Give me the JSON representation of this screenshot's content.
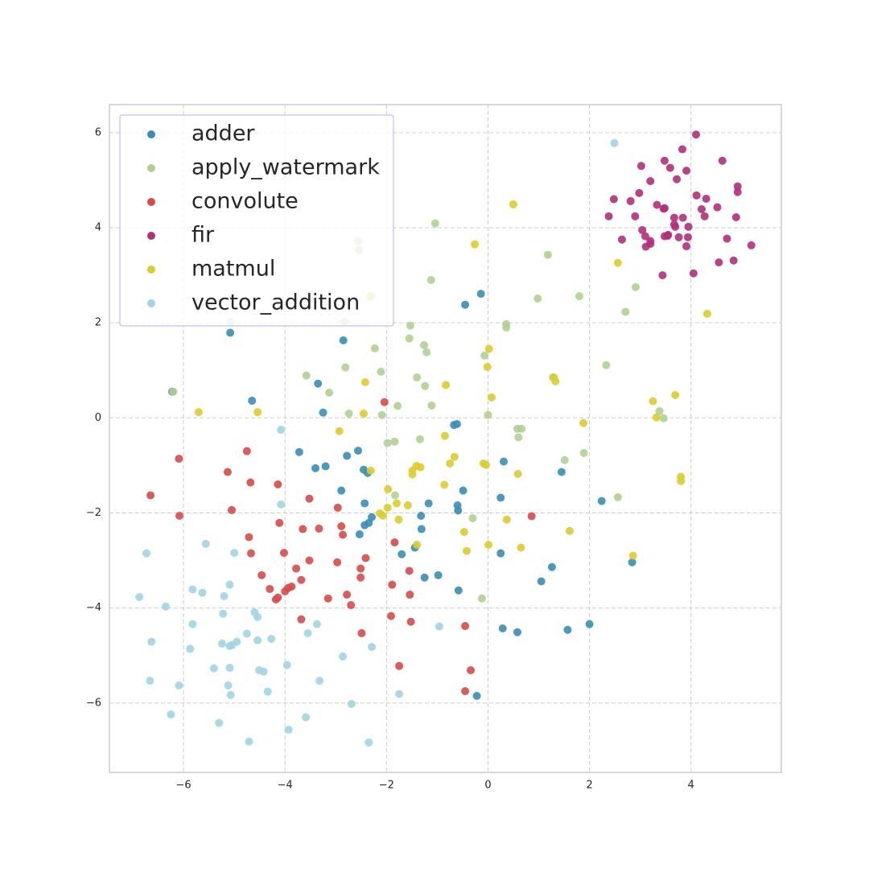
{
  "chart_data": {
    "type": "scatter",
    "xlim": [
      -7.46,
      5.78
    ],
    "ylim": [
      -7.46,
      6.59
    ],
    "xticks": [
      {
        "value": -6,
        "label": "−6"
      },
      {
        "value": -4,
        "label": "−4"
      },
      {
        "value": -2,
        "label": "−2"
      },
      0,
      2,
      4
    ],
    "yticks": [
      {
        "value": -6,
        "label": "−6"
      },
      {
        "value": -4,
        "label": "−4"
      },
      {
        "value": -2,
        "label": "−2"
      },
      0,
      2,
      4,
      6
    ],
    "grid": true,
    "legend": "upper left",
    "series": [
      {
        "name": "adder",
        "color": "#3a8eb5",
        "x": [
          -6.22,
          -5.08,
          -4.65,
          -3.35,
          -3.25,
          -2.85,
          -0.45,
          -0.14,
          -3.72,
          -3.4,
          -3.2,
          -2.78,
          -2.56,
          -2.45,
          -2.37,
          -2.89,
          -2.43,
          -2.29,
          -2.35,
          -2.43,
          -2.53,
          -1.32,
          -1.17,
          -1.31,
          -1.44,
          -1.7,
          -1.25,
          -0.98,
          -0.58,
          -0.67,
          -0.61,
          -0.49,
          -0.6,
          -0.59,
          0.31,
          0.25,
          0.25,
          0.29,
          0.58,
          -0.22,
          1.26,
          1.05,
          1.45,
          1.57,
          2.0,
          2.24,
          2.84
        ],
        "values": [
          0.55,
          1.79,
          0.36,
          0.72,
          0.11,
          1.63,
          2.38,
          2.61,
          -0.72,
          -1.06,
          -1.02,
          -0.8,
          -0.69,
          -1.09,
          -1.16,
          -1.53,
          -1.8,
          -2.09,
          -2.21,
          -2.26,
          -2.45,
          -2.06,
          -1.8,
          -2.34,
          -2.73,
          -2.87,
          -3.36,
          -3.31,
          -3.63,
          -0.15,
          -0.13,
          -1.53,
          -1.84,
          -1.95,
          -0.92,
          -1.68,
          -2.85,
          -4.43,
          -4.51,
          -5.85,
          -3.14,
          -3.44,
          -1.14,
          -4.46,
          -4.34,
          -1.75,
          -3.04
        ]
      },
      {
        "name": "apply_watermark",
        "color": "#b0d092",
        "x": [
          -1.04,
          -1.12,
          1.18,
          0.98,
          1.8,
          2.91,
          2.71,
          0.36,
          0.36,
          -1.53,
          -2.23,
          -1.26,
          -1.21,
          -1.55,
          -3.58,
          -2.81,
          -2.11,
          -3.13,
          -2.74,
          -2.09,
          -1.78,
          -1.4,
          -1.24,
          -1.11,
          -0.07,
          0,
          0.58,
          0.66,
          0.6,
          -1.98,
          -1.84,
          -1.34,
          -1.83,
          -0.3,
          -0.12,
          1.28,
          1.51,
          1.89,
          2.33,
          2.56,
          3.38,
          3.46,
          -2.56,
          -2.54,
          -2.83,
          -6.2
        ],
        "values": [
          4.09,
          2.9,
          3.43,
          2.51,
          2.56,
          2.75,
          2.23,
          1.97,
          1.9,
          1.94,
          1.46,
          1.53,
          1.38,
          1.67,
          0.89,
          1.06,
          0.97,
          0.53,
          0.09,
          0.06,
          0.25,
          0.85,
          0.67,
          0.26,
          1.31,
          0.06,
          -0.23,
          -0.23,
          -0.41,
          -0.53,
          -0.5,
          -0.45,
          -1.63,
          -2.11,
          -3.8,
          0.85,
          -0.89,
          -0.74,
          1.11,
          -1.67,
          0.14,
          -0.01,
          3.72,
          3.53,
          2.02,
          0.55
        ]
      },
      {
        "name": "convolute",
        "color": "#d64a4a",
        "x": [
          -6.65,
          -6.09,
          -6.08,
          -5.13,
          -5.05,
          -4.75,
          -4.68,
          -4.71,
          -4.67,
          -4.14,
          -4.11,
          -4.02,
          -4.46,
          -4.3,
          -4.18,
          -4.14,
          -4.0,
          -3.94,
          -3.87,
          -3.78,
          -3.68,
          -3.65,
          -3.52,
          -3.33,
          -3.52,
          -3.68,
          -3.15,
          -2.97,
          -2.96,
          -2.89,
          -2.86,
          -2.78,
          -2.7,
          -2.51,
          -2.51,
          -2.41,
          -2.49,
          -2.04,
          -1.84,
          -1.89,
          -1.91,
          -1.55,
          -1.54,
          -1.52,
          -1.75,
          -0.45,
          -0.34,
          -0.45,
          0.86
        ],
        "values": [
          -1.63,
          -0.86,
          -2.06,
          -1.14,
          -1.94,
          -0.7,
          -1.36,
          -2.51,
          -2.85,
          -1.4,
          -2.21,
          -2.84,
          -3.31,
          -3.6,
          -3.82,
          -3.78,
          -3.65,
          -3.58,
          -3.55,
          -3.17,
          -3.41,
          -2.34,
          -1.7,
          -2.33,
          -3.0,
          -4.24,
          -3.8,
          -3.04,
          -1.89,
          -2.28,
          -2.46,
          -3.72,
          -3.94,
          -3.17,
          -3.36,
          -2.95,
          -4.53,
          0.33,
          -2.62,
          -3.51,
          -4.17,
          -3.22,
          -3.72,
          -4.29,
          -5.22,
          -4.38,
          -5.31,
          -5.75,
          -2.07
        ]
      },
      {
        "name": "fir",
        "color": "#b0307a",
        "x": [
          2.48,
          2.38,
          3.02,
          3.2,
          2.98,
          2.81,
          2.9,
          2.64,
          3.04,
          3.1,
          3.11,
          3.2,
          3.2,
          3.48,
          3.59,
          3.72,
          3.83,
          3.91,
          4.1,
          4.62,
          3.33,
          3.48,
          3.46,
          3.67,
          3.67,
          3.84,
          3.95,
          3.69,
          3.55,
          3.48,
          3.54,
          3.76,
          3.94,
          3.91,
          3.44,
          4.05,
          4.11,
          4.21,
          4.3,
          4.27,
          4.52,
          4.71,
          4.55,
          4.84,
          4.92,
          4.92,
          4.89,
          5.19
        ],
        "values": [
          4.6,
          4.24,
          5.3,
          4.98,
          4.73,
          4.56,
          4.24,
          3.75,
          3.95,
          3.82,
          3.6,
          3.72,
          3.66,
          5.41,
          5.26,
          5.02,
          5.65,
          5.2,
          5.96,
          5.41,
          4.48,
          4.41,
          4.4,
          4.21,
          4.07,
          4.21,
          4.02,
          4.02,
          3.85,
          3.82,
          3.83,
          3.8,
          3.8,
          3.61,
          3.0,
          3.04,
          4.68,
          4.39,
          4.61,
          4.24,
          4.43,
          3.77,
          3.27,
          3.31,
          4.87,
          4.75,
          4.22,
          3.63
        ]
      },
      {
        "name": "matmul",
        "color": "#dccc30",
        "x": [
          0.5,
          -0.26,
          2.56,
          4.32,
          -2.32,
          -2.42,
          -2.45,
          -4.54,
          -5.7,
          -2.93,
          -2.31,
          -2.13,
          -2.07,
          -1.98,
          -1.97,
          -1.8,
          -1.76,
          -1.58,
          -1.49,
          -1.49,
          -1.41,
          -1.33,
          -1.4,
          -0.83,
          -0.85,
          -0.75,
          -0.66,
          -0.86,
          -0.47,
          -0.42,
          0.02,
          -0.01,
          0.07,
          -0.09,
          -0.04,
          0.37,
          0.01,
          0.59,
          0.65,
          1.3,
          1.33,
          1.88,
          1.61,
          3.25,
          3.32,
          3.69,
          3.8,
          3.8,
          2.86
        ],
        "values": [
          4.49,
          3.65,
          3.26,
          2.19,
          2.55,
          0.75,
          0.09,
          0.12,
          0.12,
          -0.28,
          -1.11,
          -2.01,
          -2.06,
          -1.89,
          -1.5,
          -1.8,
          -2.14,
          -1.84,
          -1.11,
          -1.19,
          -1.01,
          -1.04,
          -2.67,
          0.69,
          -0.38,
          -0.96,
          -0.82,
          -1.41,
          -2.4,
          -2.8,
          1.45,
          1.07,
          0.43,
          -0.96,
          -0.99,
          -2.14,
          -2.67,
          -1.18,
          -2.73,
          0.85,
          0.77,
          -0.11,
          -2.38,
          0.35,
          0.01,
          0.48,
          -1.24,
          -1.33,
          -2.9
        ]
      },
      {
        "name": "vector_addition",
        "color": "#a2d4e2",
        "x": [
          2.49,
          -5.07,
          -4.08,
          -4.08,
          -6.73,
          -5.56,
          -5.0,
          -6.87,
          -6.35,
          -5.82,
          -5.63,
          -5.2,
          -5.09,
          -6.63,
          -5.82,
          -5.22,
          -5.87,
          -5.24,
          -5.09,
          -5.04,
          -4.95,
          -4.75,
          -4.6,
          -4.54,
          -4.54,
          -4.27,
          -5.4,
          -5.09,
          -4.51,
          -4.42,
          -3.96,
          -3.55,
          -3.37,
          -3.32,
          -6.09,
          -6.66,
          -5.12,
          -5.07,
          -4.34,
          -6.25,
          -5.3,
          -3.59,
          -4.71,
          -3.93,
          -2.35,
          -2.86,
          -2.69,
          -2.29,
          -1.75,
          -0.96
        ],
        "values": [
          5.78,
          2.02,
          -0.25,
          -1.82,
          -2.85,
          -2.65,
          -2.84,
          -3.77,
          -3.97,
          -3.61,
          -3.68,
          -3.75,
          -3.51,
          -4.71,
          -4.34,
          -4.12,
          -4.86,
          -4.75,
          -4.8,
          -4.78,
          -4.71,
          -4.54,
          -4.09,
          -4.19,
          -4.68,
          -4.65,
          -5.27,
          -5.26,
          -5.31,
          -5.34,
          -5.2,
          -4.53,
          -4.34,
          -5.53,
          -5.63,
          -5.53,
          -5.63,
          -5.83,
          -5.76,
          -6.24,
          -6.42,
          -6.3,
          -6.81,
          -6.56,
          -6.83,
          -5.02,
          -6.02,
          -4.82,
          -5.81,
          -4.39
        ]
      }
    ]
  }
}
